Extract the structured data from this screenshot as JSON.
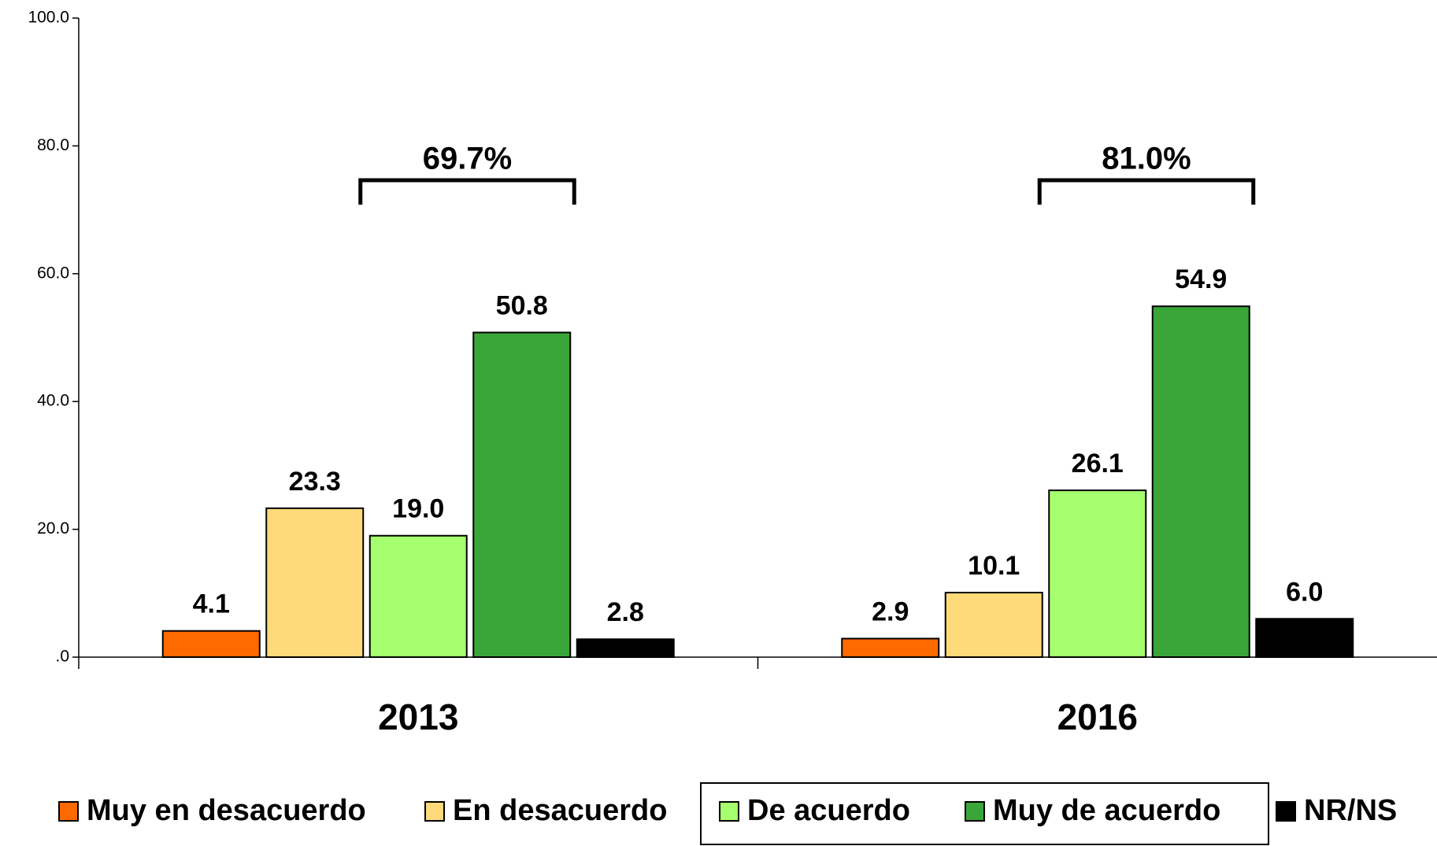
{
  "chart_data": {
    "type": "bar",
    "categories": [
      "2013",
      "2016"
    ],
    "series": [
      {
        "name": "Muy en desacuerdo",
        "color": "#ff6a00",
        "values": [
          4.1,
          2.9
        ],
        "value_labels": [
          "4.1",
          "2.9"
        ]
      },
      {
        "name": "En desacuerdo",
        "color": "#ffda7a",
        "values": [
          23.3,
          10.1
        ],
        "value_labels": [
          "23.3",
          "10.1"
        ]
      },
      {
        "name": "De acuerdo",
        "color": "#a6ff6e",
        "values": [
          19.0,
          26.1
        ],
        "value_labels": [
          "19.0",
          "26.1"
        ]
      },
      {
        "name": "Muy de acuerdo",
        "color": "#3aa63a",
        "values": [
          50.8,
          54.9
        ],
        "value_labels": [
          "50.8",
          "54.9"
        ]
      },
      {
        "name": "NR/NS",
        "color": "#000000",
        "values": [
          2.8,
          6.0
        ],
        "value_labels": [
          "2.8",
          "6.0"
        ]
      }
    ],
    "annotations": [
      "69.7%",
      "81.0%"
    ],
    "ylim": [
      0,
      100
    ],
    "yticks": [
      {
        "value": 0,
        "label": ".0"
      },
      {
        "value": 20,
        "label": "20.0"
      },
      {
        "value": 40,
        "label": "40.0"
      },
      {
        "value": 60,
        "label": "60.0"
      },
      {
        "value": 80,
        "label": "80.0"
      },
      {
        "value": 100,
        "label": "100.0"
      }
    ],
    "legend": "bottom"
  }
}
